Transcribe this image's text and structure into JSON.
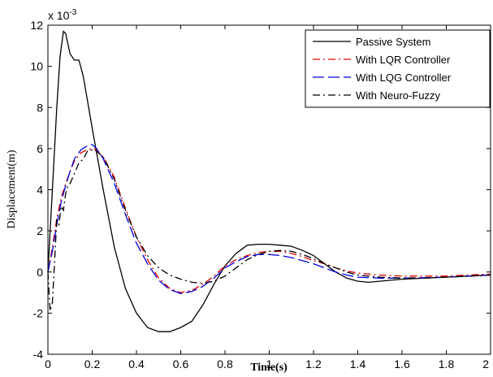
{
  "chart_data": {
    "type": "line",
    "title": "",
    "xlabel": "Time(s)",
    "ylabel": "Displacement(m)",
    "y_multiplier_label": "x 10",
    "y_multiplier_exponent": "-3",
    "xlim": [
      0,
      2
    ],
    "ylim": [
      -4,
      12
    ],
    "x_ticks": [
      "0",
      "0.2",
      "0.4",
      "0.6",
      "0.8",
      "1",
      "1.2",
      "1.4",
      "1.6",
      "1.8",
      "2"
    ],
    "y_ticks": [
      "-4",
      "-2",
      "0",
      "2",
      "4",
      "6",
      "8",
      "10",
      "12"
    ],
    "grid": false,
    "legend_position": "top-right",
    "series": [
      {
        "name": "Passive System",
        "color": "#000000",
        "dash": "solid",
        "points": [
          [
            0,
            0
          ],
          [
            0.02,
            4
          ],
          [
            0.04,
            8
          ],
          [
            0.055,
            10.5
          ],
          [
            0.07,
            11.7
          ],
          [
            0.08,
            11.6
          ],
          [
            0.1,
            10.6
          ],
          [
            0.12,
            10.3
          ],
          [
            0.14,
            10.3
          ],
          [
            0.16,
            9.5
          ],
          [
            0.2,
            7
          ],
          [
            0.25,
            4
          ],
          [
            0.3,
            1.2
          ],
          [
            0.35,
            -0.8
          ],
          [
            0.4,
            -2
          ],
          [
            0.45,
            -2.7
          ],
          [
            0.5,
            -2.9
          ],
          [
            0.55,
            -2.9
          ],
          [
            0.6,
            -2.7
          ],
          [
            0.65,
            -2.4
          ],
          [
            0.7,
            -1.6
          ],
          [
            0.75,
            -0.6
          ],
          [
            0.8,
            0.3
          ],
          [
            0.85,
            0.9
          ],
          [
            0.9,
            1.3
          ],
          [
            0.95,
            1.35
          ],
          [
            1,
            1.35
          ],
          [
            1.05,
            1.3
          ],
          [
            1.1,
            1.25
          ],
          [
            1.15,
            1.05
          ],
          [
            1.2,
            0.8
          ],
          [
            1.25,
            0.4
          ],
          [
            1.3,
            0
          ],
          [
            1.35,
            -0.3
          ],
          [
            1.4,
            -0.45
          ],
          [
            1.45,
            -0.5
          ],
          [
            1.5,
            -0.45
          ],
          [
            1.6,
            -0.35
          ],
          [
            1.7,
            -0.3
          ],
          [
            1.8,
            -0.25
          ],
          [
            1.9,
            -0.2
          ],
          [
            2,
            -0.15
          ]
        ]
      },
      {
        "name": "With LQR Controller",
        "color": "#e00000",
        "dash": "dashdot",
        "points": [
          [
            0,
            0
          ],
          [
            0.02,
            1.2
          ],
          [
            0.04,
            2.6
          ],
          [
            0.06,
            3.6
          ],
          [
            0.08,
            4.3
          ],
          [
            0.1,
            4.9
          ],
          [
            0.12,
            5.4
          ],
          [
            0.15,
            5.8
          ],
          [
            0.18,
            5.95
          ],
          [
            0.21,
            6
          ],
          [
            0.25,
            5.6
          ],
          [
            0.3,
            4.6
          ],
          [
            0.35,
            3.1
          ],
          [
            0.4,
            1.7
          ],
          [
            0.45,
            0.6
          ],
          [
            0.5,
            -0.3
          ],
          [
            0.55,
            -0.8
          ],
          [
            0.6,
            -1
          ],
          [
            0.65,
            -0.9
          ],
          [
            0.7,
            -0.6
          ],
          [
            0.75,
            -0.2
          ],
          [
            0.8,
            0.3
          ],
          [
            0.85,
            0.6
          ],
          [
            0.9,
            0.8
          ],
          [
            0.95,
            0.95
          ],
          [
            1,
            1
          ],
          [
            1.05,
            1
          ],
          [
            1.1,
            0.9
          ],
          [
            1.15,
            0.75
          ],
          [
            1.2,
            0.55
          ],
          [
            1.25,
            0.4
          ],
          [
            1.3,
            0.2
          ],
          [
            1.35,
            0.05
          ],
          [
            1.4,
            -0.05
          ],
          [
            1.5,
            -0.15
          ],
          [
            1.6,
            -0.2
          ],
          [
            1.7,
            -0.2
          ],
          [
            1.8,
            -0.2
          ],
          [
            1.9,
            -0.15
          ],
          [
            2,
            -0.1
          ]
        ]
      },
      {
        "name": "With LQG Controller",
        "color": "#0000e0",
        "dash": "longdash",
        "points": [
          [
            0,
            0
          ],
          [
            0.02,
            1
          ],
          [
            0.04,
            2.3
          ],
          [
            0.06,
            3.4
          ],
          [
            0.08,
            4.2
          ],
          [
            0.1,
            4.9
          ],
          [
            0.12,
            5.5
          ],
          [
            0.15,
            5.95
          ],
          [
            0.18,
            6.15
          ],
          [
            0.2,
            6.2
          ],
          [
            0.22,
            6
          ],
          [
            0.25,
            5.5
          ],
          [
            0.3,
            4.3
          ],
          [
            0.35,
            2.8
          ],
          [
            0.4,
            1.4
          ],
          [
            0.45,
            0.4
          ],
          [
            0.5,
            -0.4
          ],
          [
            0.55,
            -0.85
          ],
          [
            0.6,
            -1.05
          ],
          [
            0.65,
            -0.95
          ],
          [
            0.7,
            -0.7
          ],
          [
            0.75,
            -0.3
          ],
          [
            0.8,
            0.2
          ],
          [
            0.85,
            0.5
          ],
          [
            0.9,
            0.75
          ],
          [
            0.95,
            0.85
          ],
          [
            1,
            0.85
          ],
          [
            1.05,
            0.8
          ],
          [
            1.1,
            0.7
          ],
          [
            1.15,
            0.55
          ],
          [
            1.2,
            0.4
          ],
          [
            1.25,
            0.2
          ],
          [
            1.3,
            0
          ],
          [
            1.35,
            -0.15
          ],
          [
            1.4,
            -0.25
          ],
          [
            1.5,
            -0.3
          ],
          [
            1.6,
            -0.3
          ],
          [
            1.7,
            -0.28
          ],
          [
            1.8,
            -0.25
          ],
          [
            1.9,
            -0.2
          ],
          [
            2,
            -0.15
          ]
        ]
      },
      {
        "name": "With Neuro-Fuzzy",
        "color": "#000000",
        "dash": "dashdot",
        "points": [
          [
            0,
            0
          ],
          [
            0.01,
            -1.9
          ],
          [
            0.02,
            -1.5
          ],
          [
            0.03,
            0.5
          ],
          [
            0.04,
            2.5
          ],
          [
            0.05,
            2.3
          ],
          [
            0.06,
            3.2
          ],
          [
            0.07,
            3
          ],
          [
            0.08,
            3.8
          ],
          [
            0.09,
            4.2
          ],
          [
            0.1,
            4.3
          ],
          [
            0.12,
            4.8
          ],
          [
            0.14,
            5.3
          ],
          [
            0.16,
            5.5
          ],
          [
            0.18,
            5.9
          ],
          [
            0.21,
            5.95
          ],
          [
            0.25,
            5.6
          ],
          [
            0.3,
            4.5
          ],
          [
            0.35,
            3
          ],
          [
            0.4,
            1.7
          ],
          [
            0.45,
            0.8
          ],
          [
            0.5,
            0.2
          ],
          [
            0.55,
            -0.15
          ],
          [
            0.6,
            -0.35
          ],
          [
            0.65,
            -0.5
          ],
          [
            0.7,
            -0.55
          ],
          [
            0.75,
            -0.45
          ],
          [
            0.8,
            -0.2
          ],
          [
            0.85,
            0.2
          ],
          [
            0.9,
            0.6
          ],
          [
            0.95,
            0.85
          ],
          [
            1,
            1
          ],
          [
            1.05,
            1.05
          ],
          [
            1.1,
            1
          ],
          [
            1.15,
            0.85
          ],
          [
            1.2,
            0.65
          ],
          [
            1.25,
            0.4
          ],
          [
            1.3,
            0.2
          ],
          [
            1.35,
            0
          ],
          [
            1.4,
            -0.15
          ],
          [
            1.5,
            -0.25
          ],
          [
            1.6,
            -0.3
          ],
          [
            1.7,
            -0.3
          ],
          [
            1.8,
            -0.25
          ],
          [
            1.9,
            -0.2
          ],
          [
            2,
            -0.15
          ]
        ]
      }
    ]
  }
}
